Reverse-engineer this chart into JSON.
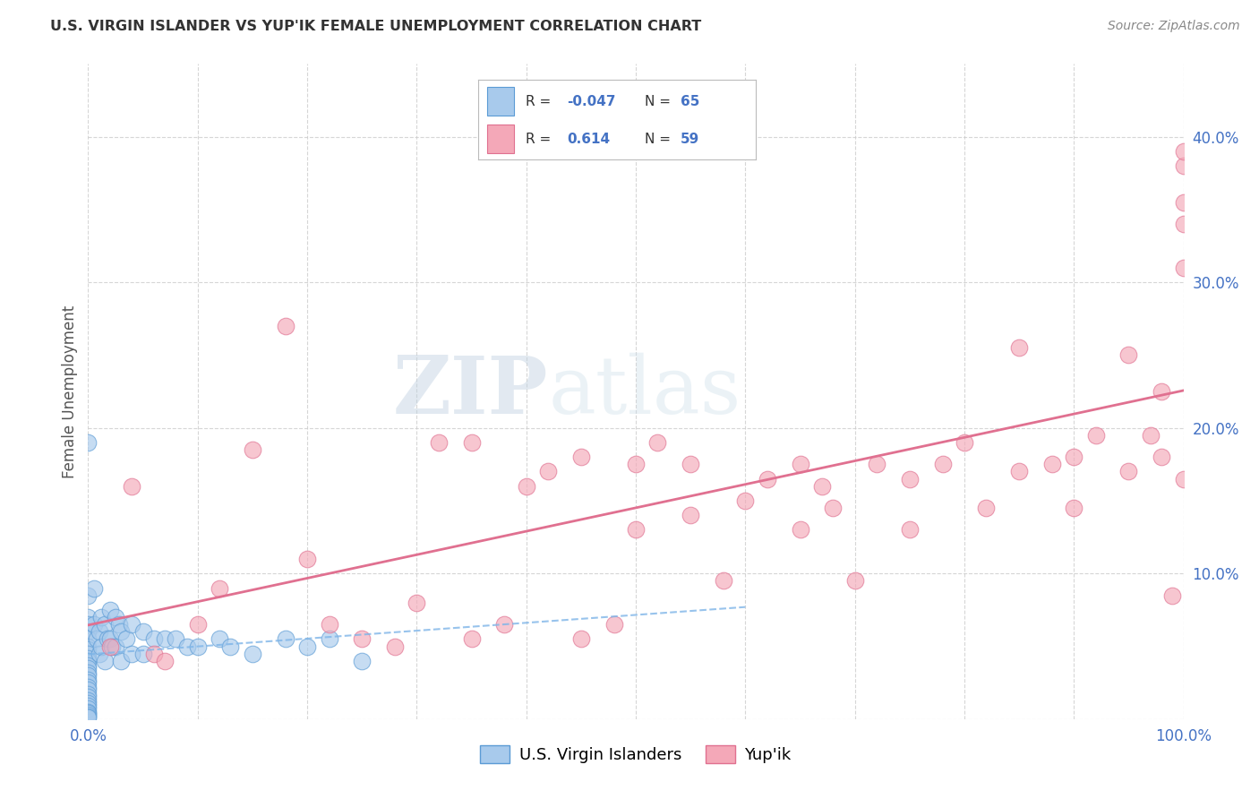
{
  "title": "U.S. VIRGIN ISLANDER VS YUP'IK FEMALE UNEMPLOYMENT CORRELATION CHART",
  "source": "Source: ZipAtlas.com",
  "ylabel": "Female Unemployment",
  "xlim": [
    0,
    1.0
  ],
  "ylim": [
    0,
    0.45
  ],
  "xticks": [
    0.0,
    0.1,
    0.2,
    0.3,
    0.4,
    0.5,
    0.6,
    0.7,
    0.8,
    0.9,
    1.0
  ],
  "xticklabels": [
    "0.0%",
    "",
    "",
    "",
    "",
    "",
    "",
    "",
    "",
    "",
    "100.0%"
  ],
  "yticks": [
    0.0,
    0.1,
    0.2,
    0.3,
    0.4
  ],
  "yticklabels": [
    "",
    "10.0%",
    "20.0%",
    "30.0%",
    "40.0%"
  ],
  "legend_blue_label": "U.S. Virgin Islanders",
  "legend_pink_label": "Yup'ik",
  "R_blue": -0.047,
  "N_blue": 65,
  "R_pink": 0.614,
  "N_pink": 59,
  "blue_color": "#A8CAEC",
  "pink_color": "#F4A8B8",
  "blue_edge_color": "#5B9BD5",
  "pink_edge_color": "#E07090",
  "blue_line_color": "#7EB5E8",
  "pink_line_color": "#E07090",
  "watermark_zip": "ZIP",
  "watermark_atlas": "atlas",
  "background_color": "#FFFFFF",
  "blue_scatter_x": [
    0.0,
    0.0,
    0.0,
    0.0,
    0.0,
    0.0,
    0.0,
    0.0,
    0.0,
    0.0,
    0.0,
    0.0,
    0.0,
    0.0,
    0.0,
    0.0,
    0.0,
    0.0,
    0.0,
    0.0,
    0.0,
    0.0,
    0.0,
    0.0,
    0.0,
    0.0,
    0.0,
    0.0,
    0.0,
    0.0,
    0.005,
    0.005,
    0.008,
    0.01,
    0.01,
    0.012,
    0.012,
    0.015,
    0.015,
    0.018,
    0.02,
    0.02,
    0.022,
    0.025,
    0.025,
    0.028,
    0.03,
    0.03,
    0.035,
    0.04,
    0.04,
    0.05,
    0.05,
    0.06,
    0.07,
    0.08,
    0.09,
    0.1,
    0.12,
    0.13,
    0.15,
    0.18,
    0.2,
    0.22,
    0.25
  ],
  "blue_scatter_y": [
    0.19,
    0.085,
    0.07,
    0.065,
    0.06,
    0.055,
    0.05,
    0.048,
    0.045,
    0.042,
    0.04,
    0.037,
    0.035,
    0.032,
    0.03,
    0.027,
    0.025,
    0.022,
    0.02,
    0.017,
    0.015,
    0.013,
    0.011,
    0.009,
    0.007,
    0.005,
    0.004,
    0.003,
    0.002,
    0.001,
    0.09,
    0.065,
    0.055,
    0.06,
    0.045,
    0.07,
    0.05,
    0.065,
    0.04,
    0.055,
    0.075,
    0.055,
    0.05,
    0.07,
    0.05,
    0.065,
    0.06,
    0.04,
    0.055,
    0.065,
    0.045,
    0.06,
    0.045,
    0.055,
    0.055,
    0.055,
    0.05,
    0.05,
    0.055,
    0.05,
    0.045,
    0.055,
    0.05,
    0.055,
    0.04
  ],
  "pink_scatter_x": [
    0.02,
    0.04,
    0.06,
    0.07,
    0.1,
    0.12,
    0.15,
    0.18,
    0.2,
    0.22,
    0.25,
    0.28,
    0.3,
    0.32,
    0.35,
    0.35,
    0.38,
    0.4,
    0.42,
    0.45,
    0.45,
    0.48,
    0.5,
    0.5,
    0.52,
    0.55,
    0.55,
    0.58,
    0.6,
    0.62,
    0.65,
    0.65,
    0.67,
    0.68,
    0.7,
    0.72,
    0.75,
    0.75,
    0.78,
    0.8,
    0.82,
    0.85,
    0.85,
    0.88,
    0.9,
    0.9,
    0.92,
    0.95,
    0.95,
    0.97,
    0.98,
    0.98,
    0.99,
    1.0,
    1.0,
    1.0,
    1.0,
    1.0,
    1.0
  ],
  "pink_scatter_y": [
    0.05,
    0.16,
    0.045,
    0.04,
    0.065,
    0.09,
    0.185,
    0.27,
    0.11,
    0.065,
    0.055,
    0.05,
    0.08,
    0.19,
    0.055,
    0.19,
    0.065,
    0.16,
    0.17,
    0.055,
    0.18,
    0.065,
    0.13,
    0.175,
    0.19,
    0.14,
    0.175,
    0.095,
    0.15,
    0.165,
    0.13,
    0.175,
    0.16,
    0.145,
    0.095,
    0.175,
    0.13,
    0.165,
    0.175,
    0.19,
    0.145,
    0.17,
    0.255,
    0.175,
    0.145,
    0.18,
    0.195,
    0.25,
    0.17,
    0.195,
    0.225,
    0.18,
    0.085,
    0.38,
    0.34,
    0.355,
    0.165,
    0.31,
    0.39
  ]
}
